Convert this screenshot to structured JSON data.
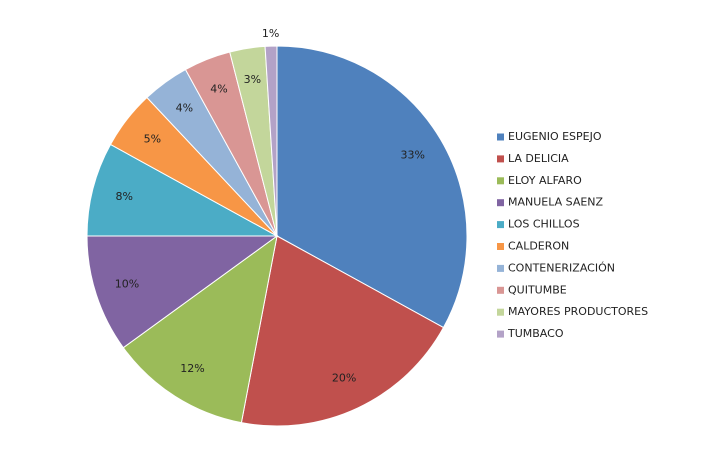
{
  "chart_data": {
    "type": "pie",
    "categories": [
      "EUGENIO ESPEJO",
      "LA DELICIA",
      "ELOY ALFARO",
      "MANUELA SAENZ",
      "LOS CHILLOS",
      "CALDERON",
      "CONTENERIZACIÓN",
      "QUITUMBE",
      "MAYORES PRODUCTORES",
      "TUMBACO"
    ],
    "values": [
      33,
      20,
      12,
      10,
      8,
      5,
      4,
      4,
      3,
      1
    ],
    "value_labels": [
      "33%",
      "20%",
      "12%",
      "10%",
      "8%",
      "5%",
      "4%",
      "4%",
      "3%",
      "1%"
    ],
    "colors": [
      "#4F81BD",
      "#C0504D",
      "#9BBB59",
      "#8064A2",
      "#4BACC6",
      "#F79646",
      "#95B3D7",
      "#D99694",
      "#C3D69B",
      "#B3A2C7"
    ],
    "legend": "right"
  }
}
